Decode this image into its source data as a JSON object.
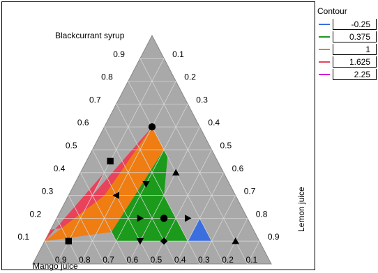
{
  "legend": {
    "title": "Contour",
    "items": [
      {
        "label": "-0.25",
        "color": "#3b6fe0"
      },
      {
        "label": "0.375",
        "color": "#1b9a1b"
      },
      {
        "label": "1",
        "color": "#ef7d12"
      },
      {
        "label": "1.625",
        "color": "#e8435a"
      },
      {
        "label": "2.25",
        "color": "#d417d4"
      }
    ]
  },
  "chart_data": {
    "type": "ternary-contour",
    "axes": {
      "top": "Blackcurrant syrup",
      "left": "Mango juice",
      "right": "Lemon juice"
    },
    "ticks": {
      "top": [
        "0.1",
        "0.2",
        "0.3",
        "0.4",
        "0.5",
        "0.6",
        "0.7",
        "0.8",
        "0.9"
      ],
      "left": [
        "0.9",
        "0.8",
        "0.7",
        "0.6",
        "0.5",
        "0.4",
        "0.3",
        "0.2",
        "0.1"
      ],
      "right": [
        "0.9",
        "0.8",
        "0.7",
        "0.6",
        "0.5",
        "0.4",
        "0.3",
        "0.2",
        "0.1"
      ]
    },
    "contour_levels": [
      -0.25,
      0.375,
      1,
      1.625,
      2.25
    ],
    "background_color": "#a9a9a9",
    "regions": [
      {
        "level": "1.625",
        "color": "#e8435a",
        "polygon": [
          [
            0.1,
            0.9,
            0
          ],
          [
            0.15,
            0.85,
            0
          ],
          [
            0.18,
            0.62,
            0.2
          ],
          [
            0.6,
            0.2,
            0.2
          ],
          [
            0.3,
            0.6,
            0.1
          ],
          [
            0.4,
            0.5,
            0.1
          ]
        ]
      },
      {
        "level": "1",
        "color": "#ef7d12",
        "polygon": [
          [
            0.1,
            0.9,
            0
          ],
          [
            0.14,
            0.6,
            0.26
          ],
          [
            0.5,
            0.2,
            0.3
          ],
          [
            0.6,
            0.2,
            0.2
          ],
          [
            0.3,
            0.55,
            0.15
          ]
        ]
      },
      {
        "level": "0.375",
        "color": "#1b9a1b",
        "polygon": [
          [
            0.1,
            0.6,
            0.3
          ],
          [
            0.1,
            0.3,
            0.6
          ],
          [
            0.3,
            0.3,
            0.4
          ],
          [
            0.47,
            0.2,
            0.33
          ],
          [
            0.5,
            0.2,
            0.3
          ],
          [
            0.14,
            0.6,
            0.26
          ]
        ]
      },
      {
        "level": "-0.25",
        "color": "#3b6fe0",
        "polygon": [
          [
            0.1,
            0.3,
            0.6
          ],
          [
            0.2,
            0.2,
            0.6
          ],
          [
            0.1,
            0.2,
            0.7
          ]
        ]
      }
    ],
    "points": [
      {
        "shape": "circle",
        "a": 0.6,
        "b": 0.2,
        "c": 0.2
      },
      {
        "shape": "square",
        "a": 0.45,
        "b": 0.45,
        "c": 0.1
      },
      {
        "shape": "square",
        "a": 0.1,
        "b": 0.8,
        "c": 0.1
      },
      {
        "shape": "triangle-up",
        "a": 0.4,
        "b": 0.2,
        "c": 0.4
      },
      {
        "shape": "triangle-left",
        "a": 0.3,
        "b": 0.5,
        "c": 0.2
      },
      {
        "shape": "triangle-down",
        "a": 0.35,
        "b": 0.35,
        "c": 0.3
      },
      {
        "shape": "triangle-right",
        "a": 0.2,
        "b": 0.45,
        "c": 0.35
      },
      {
        "shape": "circle",
        "a": 0.2,
        "b": 0.35,
        "c": 0.45
      },
      {
        "shape": "triangle-right",
        "a": 0.2,
        "b": 0.25,
        "c": 0.55
      },
      {
        "shape": "triangle-down",
        "a": 0.1,
        "b": 0.5,
        "c": 0.4
      },
      {
        "shape": "diamond",
        "a": 0.1,
        "b": 0.4,
        "c": 0.5
      },
      {
        "shape": "triangle-up",
        "a": 0.1,
        "b": 0.1,
        "c": 0.8
      }
    ]
  }
}
